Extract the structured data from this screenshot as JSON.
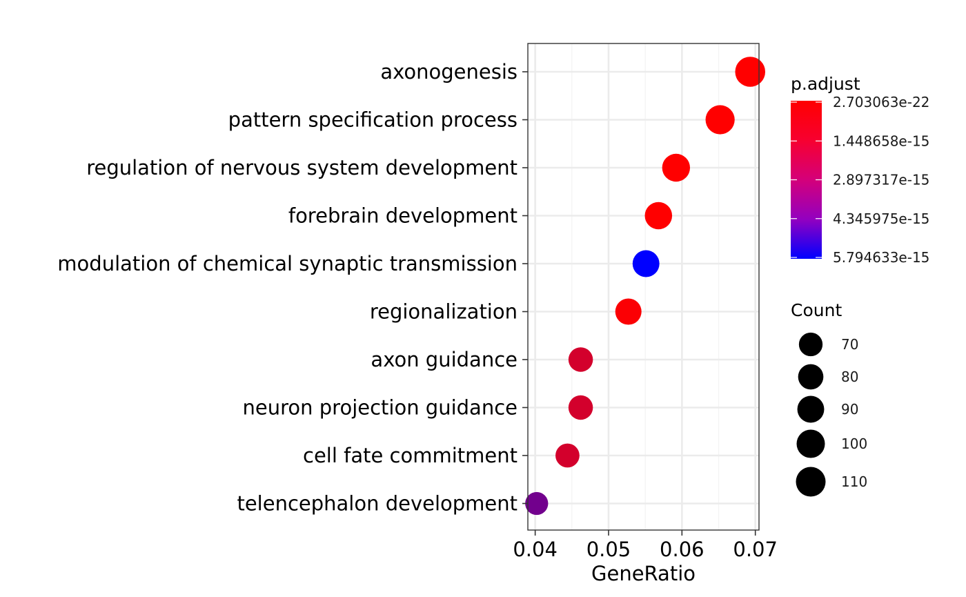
{
  "chart_data": {
    "type": "scatter",
    "subtype": "dot plot",
    "xlabel": "GeneRatio",
    "ylabel": "",
    "xlim": [
      0.039,
      0.0705
    ],
    "x_ticks": [
      0.04,
      0.05,
      0.06,
      0.07
    ],
    "x_tick_labels": [
      "0.04",
      "0.05",
      "0.06",
      "0.07"
    ],
    "grid": true,
    "categories": [
      "axonogenesis",
      "pattern specification process",
      "regulation of nervous system development",
      "forebrain development",
      "modulation of chemical synaptic transmission",
      "regionalization",
      "axon guidance",
      "neuron projection guidance",
      "cell fate commitment",
      "telencephalon development"
    ],
    "points": [
      {
        "term": "axonogenesis",
        "gene_ratio": 0.0693,
        "count": 113,
        "p_adjust": 2.7e-22
      },
      {
        "term": "pattern specification process",
        "gene_ratio": 0.0652,
        "count": 106,
        "p_adjust": 1e-20
      },
      {
        "term": "regulation of nervous system development",
        "gene_ratio": 0.0592,
        "count": 97,
        "p_adjust": 1e-18
      },
      {
        "term": "forebrain development",
        "gene_ratio": 0.0568,
        "count": 93,
        "p_adjust": 1e-17
      },
      {
        "term": "modulation of chemical synaptic transmission",
        "gene_ratio": 0.0551,
        "count": 90,
        "p_adjust": 5.794633e-15
      },
      {
        "term": "regionalization",
        "gene_ratio": 0.0527,
        "count": 86,
        "p_adjust": 1e-16
      },
      {
        "term": "axon guidance",
        "gene_ratio": 0.0462,
        "count": 75,
        "p_adjust": 1e-15
      },
      {
        "term": "neuron projection guidance",
        "gene_ratio": 0.0462,
        "count": 75,
        "p_adjust": 1e-15
      },
      {
        "term": "cell fate commitment",
        "gene_ratio": 0.0444,
        "count": 72,
        "p_adjust": 1e-15
      },
      {
        "term": "telencephalon development",
        "gene_ratio": 0.0402,
        "count": 66,
        "p_adjust": 3.2e-15
      }
    ],
    "color_legend": {
      "title": "p.adjust",
      "labels": [
        "2.703063e-22",
        "1.448658e-15",
        "2.897317e-15",
        "4.345975e-15",
        "5.794633e-15"
      ],
      "values": [
        2.703063e-22,
        1.448658e-15,
        2.897317e-15,
        4.345975e-15,
        5.794633e-15
      ],
      "low_color": "#ff0000",
      "high_color": "#0000ff"
    },
    "size_legend": {
      "title": "Count",
      "labels": [
        "70",
        "80",
        "90",
        "100",
        "110"
      ],
      "values": [
        70,
        80,
        90,
        100,
        110
      ]
    },
    "legend_position": "right"
  }
}
